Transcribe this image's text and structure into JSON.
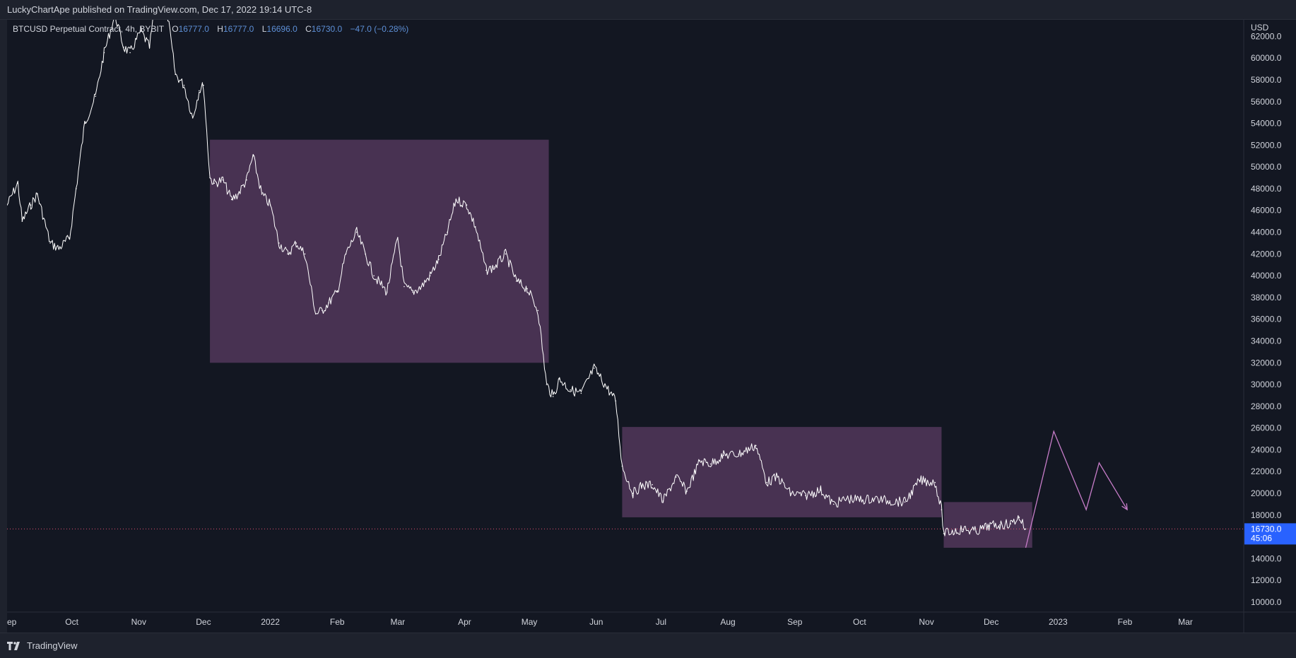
{
  "header": {
    "published_text": "LuckyChartApe published on TradingView.com, Dec 17, 2022 19:14 UTC-8"
  },
  "legend": {
    "symbol": "BTCUSD Perpetual Contract, 4h, BYBIT",
    "o_label": "O",
    "o_value": "16777.0",
    "h_label": "H",
    "h_value": "16777.0",
    "l_label": "L",
    "l_value": "16696.0",
    "c_label": "C",
    "c_value": "16730.0",
    "change": "−47.0 (−0.28%)"
  },
  "price_axis": {
    "currency": "USD",
    "last_price": "16730.0",
    "countdown": "45:06"
  },
  "footer": {
    "brand": "TradingView"
  },
  "colors": {
    "background": "#131722",
    "price_line": "#ffffff",
    "box_fill": "#4b3455",
    "projection": "#c77dc9",
    "last_price_bg": "#2962ff",
    "last_price_dotted": "#e04f70"
  },
  "chart_data": {
    "type": "line",
    "title": "BTCUSD Perpetual Contract, 4h, BYBIT",
    "ylabel": "USD",
    "ylim": [
      10000,
      63000
    ],
    "yticks": [
      62000,
      60000,
      58000,
      56000,
      54000,
      52000,
      50000,
      48000,
      46000,
      44000,
      42000,
      40000,
      38000,
      36000,
      34000,
      32000,
      30000,
      28000,
      26000,
      24000,
      22000,
      20000,
      18000,
      16000,
      14000,
      12000,
      10000
    ],
    "ytick_labels": [
      "62000.0",
      "60000.0",
      "58000.0",
      "56000.0",
      "54000.0",
      "52000.0",
      "50000.0",
      "48000.0",
      "46000.0",
      "44000.0",
      "42000.0",
      "40000.0",
      "38000.0",
      "36000.0",
      "34000.0",
      "32000.0",
      "30000.0",
      "28000.0",
      "26000.0",
      "24000.0",
      "22000.0",
      "20000.0",
      "18000.0",
      "16000.0",
      "14000.0",
      "12000.0",
      "10000.0"
    ],
    "xtick_labels": [
      "ep",
      "Oct",
      "Nov",
      "Dec",
      "2022",
      "Feb",
      "Mar",
      "Apr",
      "May",
      "Jun",
      "Jul",
      "Aug",
      "Sep",
      "Oct",
      "Nov",
      "Dec",
      "2023",
      "Feb",
      "Mar"
    ],
    "xtick_dates": [
      "2021-09-01",
      "2021-10-01",
      "2021-11-01",
      "2021-12-01",
      "2022-01-01",
      "2022-02-01",
      "2022-03-01",
      "2022-04-01",
      "2022-05-01",
      "2022-06-01",
      "2022-07-01",
      "2022-08-01",
      "2022-09-01",
      "2022-10-01",
      "2022-11-01",
      "2022-12-01",
      "2023-01-01",
      "2023-02-01",
      "2023-03-01"
    ],
    "xlim": [
      "2021-09-01",
      "2023-03-28"
    ],
    "grid": false,
    "series": [
      {
        "x": [
          "2021-09-01",
          "2021-09-06",
          "2021-09-08",
          "2021-09-12",
          "2021-09-15",
          "2021-09-21",
          "2021-09-25",
          "2021-09-30",
          "2021-10-03",
          "2021-10-07",
          "2021-10-12",
          "2021-10-16",
          "2021-10-21",
          "2021-10-25",
          "2021-10-28",
          "2021-11-02",
          "2021-11-06",
          "2021-11-10",
          "2021-11-14",
          "2021-11-18",
          "2021-11-22",
          "2021-11-26",
          "2021-11-29",
          "2021-12-01",
          "2021-12-04",
          "2021-12-06",
          "2021-12-10",
          "2021-12-14",
          "2021-12-17",
          "2021-12-21",
          "2021-12-24",
          "2021-12-28",
          "2022-01-01",
          "2022-01-05",
          "2022-01-09",
          "2022-01-13",
          "2022-01-17",
          "2022-01-22",
          "2022-01-25",
          "2022-01-28",
          "2022-02-01",
          "2022-02-05",
          "2022-02-10",
          "2022-02-14",
          "2022-02-18",
          "2022-02-24",
          "2022-03-01",
          "2022-03-04",
          "2022-03-08",
          "2022-03-12",
          "2022-03-16",
          "2022-03-20",
          "2022-03-24",
          "2022-03-28",
          "2022-04-02",
          "2022-04-06",
          "2022-04-11",
          "2022-04-15",
          "2022-04-20",
          "2022-04-25",
          "2022-04-30",
          "2022-05-05",
          "2022-05-09",
          "2022-05-12",
          "2022-05-15",
          "2022-05-20",
          "2022-05-25",
          "2022-05-31",
          "2022-06-05",
          "2022-06-10",
          "2022-06-13",
          "2022-06-18",
          "2022-06-22",
          "2022-06-27",
          "2022-07-02",
          "2022-07-08",
          "2022-07-13",
          "2022-07-19",
          "2022-07-24",
          "2022-07-30",
          "2022-08-06",
          "2022-08-14",
          "2022-08-19",
          "2022-08-24",
          "2022-08-30",
          "2022-09-06",
          "2022-09-13",
          "2022-09-19",
          "2022-09-25",
          "2022-10-01",
          "2022-10-08",
          "2022-10-15",
          "2022-10-22",
          "2022-10-29",
          "2022-11-05",
          "2022-11-08",
          "2022-11-09",
          "2022-11-13",
          "2022-11-18",
          "2022-11-24",
          "2022-11-30",
          "2022-12-05",
          "2022-12-10",
          "2022-12-14",
          "2022-12-17"
        ],
        "y": [
          46500,
          48500,
          45000,
          46500,
          47500,
          43000,
          42500,
          43500,
          48000,
          54000,
          56500,
          60500,
          64000,
          61000,
          60500,
          62500,
          61000,
          67000,
          64500,
          58500,
          57500,
          54500,
          57000,
          57500,
          49000,
          48500,
          48800,
          47000,
          47500,
          48800,
          51000,
          47500,
          46500,
          43000,
          42000,
          43000,
          42000,
          36500,
          36800,
          37500,
          38500,
          42000,
          44000,
          42000,
          40000,
          38500,
          43500,
          39000,
          38500,
          39000,
          40000,
          41500,
          44000,
          47000,
          46500,
          44500,
          40500,
          40800,
          42000,
          39500,
          38800,
          36800,
          30000,
          28900,
          30500,
          29500,
          29200,
          31500,
          30000,
          28500,
          22500,
          20000,
          20700,
          20800,
          19300,
          21500,
          20200,
          23000,
          22700,
          23500,
          23600,
          24400,
          21000,
          21500,
          20000,
          19800,
          20300,
          19000,
          19500,
          19400,
          19500,
          19300,
          19200,
          21200,
          21000,
          18500,
          16300,
          16500,
          16700,
          16500,
          17000,
          17100,
          17200,
          17800,
          16730
        ]
      }
    ],
    "zones": [
      {
        "start": "2021-12-04",
        "end": "2022-05-10",
        "low": 32000,
        "high": 52500
      },
      {
        "start": "2022-06-13",
        "end": "2022-11-08",
        "low": 17800,
        "high": 26100
      },
      {
        "start": "2022-11-09",
        "end": "2022-12-20",
        "low": 15000,
        "high": 19200
      }
    ],
    "projection": {
      "x": [
        "2022-12-17",
        "2022-12-30",
        "2023-01-14",
        "2023-01-20",
        "2023-02-02"
      ],
      "y": [
        15000,
        25700,
        18500,
        22800,
        18500
      ]
    },
    "last_price": 16730
  }
}
